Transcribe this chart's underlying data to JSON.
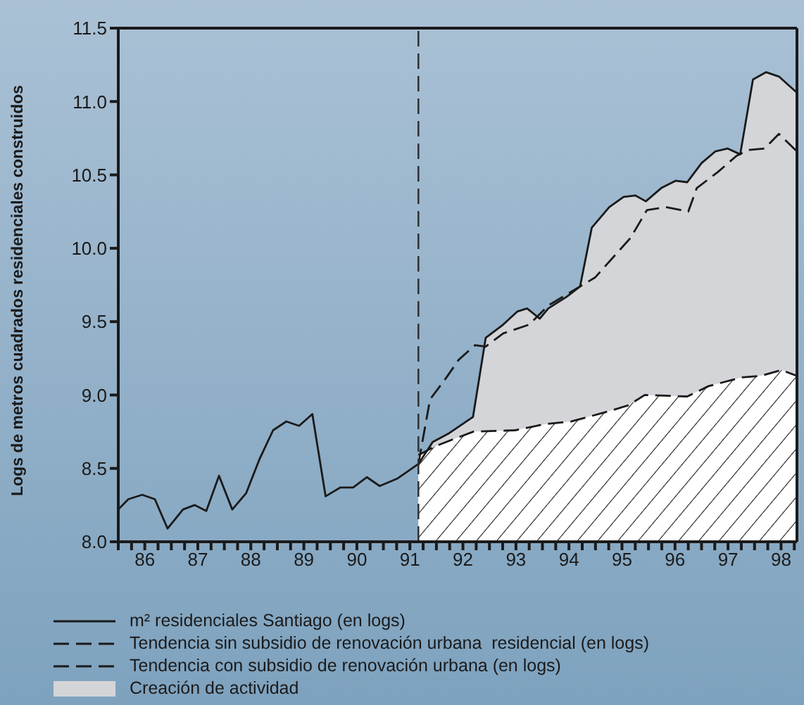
{
  "chart_data": {
    "type": "line",
    "ylabel": "Logs de metros cuadrados residenciales construidos",
    "xlim": [
      86,
      98.8
    ],
    "ylim": [
      8,
      11.5
    ],
    "yticks": [
      {
        "value": 8,
        "label": "8.0"
      },
      8.5,
      {
        "value": 9,
        "label": "9.0"
      },
      9.5,
      {
        "value": 10,
        "label": "10.0"
      },
      10.5,
      {
        "value": 11,
        "label": "11.0"
      },
      11.5
    ],
    "xticks": [
      {
        "value": 86,
        "label": null
      },
      {
        "value": 86.25,
        "label": null
      },
      {
        "value": 86.5,
        "label": "86"
      },
      {
        "value": 86.75,
        "label": null
      },
      {
        "value": 87,
        "label": null
      },
      {
        "value": 87.25,
        "label": null
      },
      {
        "value": 87.5,
        "label": "87"
      },
      {
        "value": 87.75,
        "label": null
      },
      {
        "value": 88,
        "label": null
      },
      {
        "value": 88.25,
        "label": null
      },
      {
        "value": 88.5,
        "label": "88"
      },
      {
        "value": 88.75,
        "label": null
      },
      {
        "value": 89,
        "label": null
      },
      {
        "value": 89.25,
        "label": null
      },
      {
        "value": 89.5,
        "label": "89"
      },
      {
        "value": 89.75,
        "label": null
      },
      {
        "value": 90,
        "label": null
      },
      {
        "value": 90.25,
        "label": null
      },
      {
        "value": 90.5,
        "label": "90"
      },
      {
        "value": 90.75,
        "label": null
      },
      {
        "value": 91,
        "label": null
      },
      {
        "value": 91.25,
        "label": null
      },
      {
        "value": 91.5,
        "label": "91"
      },
      {
        "value": 91.75,
        "label": null
      },
      {
        "value": 92,
        "label": null
      },
      {
        "value": 92.25,
        "label": null
      },
      {
        "value": 92.5,
        "label": "92"
      },
      {
        "value": 92.75,
        "label": null
      },
      {
        "value": 93,
        "label": null
      },
      {
        "value": 93.25,
        "label": null
      },
      {
        "value": 93.5,
        "label": "93"
      },
      {
        "value": 93.75,
        "label": null
      },
      {
        "value": 94,
        "label": null
      },
      {
        "value": 94.25,
        "label": null
      },
      {
        "value": 94.5,
        "label": "94"
      },
      {
        "value": 94.75,
        "label": null
      },
      {
        "value": 95,
        "label": null
      },
      {
        "value": 95.25,
        "label": null
      },
      {
        "value": 95.5,
        "label": "95"
      },
      {
        "value": 95.75,
        "label": null
      },
      {
        "value": 96,
        "label": null
      },
      {
        "value": 96.25,
        "label": null
      },
      {
        "value": 96.5,
        "label": "96"
      },
      {
        "value": 96.75,
        "label": null
      },
      {
        "value": 97,
        "label": null
      },
      {
        "value": 97.25,
        "label": null
      },
      {
        "value": 97.5,
        "label": "97"
      },
      {
        "value": 97.75,
        "label": null
      },
      {
        "value": 98,
        "label": null
      },
      {
        "value": 98.25,
        "label": null
      },
      {
        "value": 98.5,
        "label": "98"
      },
      {
        "value": 98.75,
        "label": null
      }
    ],
    "legend": "bottom",
    "ref_lines": [
      {
        "axis": "x",
        "value": 91.66,
        "color": "#333333",
        "line_style": "dashed"
      }
    ],
    "series": [
      {
        "name": "m² residenciales Santiago (en logs)",
        "color": "#1a1a1a",
        "line_style": "solid",
        "x": [
          86.0,
          86.19,
          86.45,
          86.69,
          86.93,
          87.22,
          87.44,
          87.66,
          87.9,
          88.15,
          88.41,
          88.66,
          88.92,
          89.17,
          89.41,
          89.66,
          89.91,
          90.19,
          90.43,
          90.69,
          90.93,
          91.26,
          91.66,
          91.93,
          92.24,
          92.69,
          92.93,
          93.26,
          93.53,
          93.71,
          93.95,
          94.11,
          94.46,
          94.71,
          94.93,
          95.26,
          95.53,
          95.75,
          95.95,
          96.24,
          96.51,
          96.73,
          97.0,
          97.26,
          97.49,
          97.73,
          97.97,
          98.22,
          98.46,
          98.8
        ],
        "values": [
          8.22,
          8.29,
          8.32,
          8.29,
          8.09,
          8.22,
          8.25,
          8.21,
          8.45,
          8.22,
          8.33,
          8.56,
          8.76,
          8.82,
          8.79,
          8.87,
          8.31,
          8.37,
          8.37,
          8.44,
          8.38,
          8.43,
          8.53,
          8.68,
          8.74,
          8.85,
          9.39,
          9.48,
          9.57,
          9.59,
          9.52,
          9.59,
          9.67,
          9.74,
          10.14,
          10.28,
          10.35,
          10.36,
          10.32,
          10.41,
          10.46,
          10.45,
          10.58,
          10.66,
          10.68,
          10.64,
          11.15,
          11.2,
          11.17,
          11.06
        ]
      },
      {
        "name": "Tendencia sin subsidio de renovación urbana  residencial (en logs)",
        "type": "area",
        "color": "#1a1a1a",
        "line_style": "dashed",
        "x": [
          91.66,
          91.97,
          92.69,
          93.49,
          94.02,
          94.55,
          95.26,
          95.62,
          95.93,
          96.73,
          97.13,
          97.75,
          98.11,
          98.51,
          98.8
        ],
        "values": [
          8.59,
          8.65,
          8.75,
          8.76,
          8.8,
          8.82,
          8.89,
          8.93,
          9.0,
          8.99,
          9.06,
          9.12,
          9.13,
          9.17,
          9.13
        ]
      },
      {
        "name": "Tendencia con subsidio de renovación urbana (en logs)",
        "color": "#1a1a1a",
        "line_style": "dashed",
        "x": [
          91.66,
          91.88,
          92.19,
          92.42,
          92.73,
          92.93,
          93.26,
          93.75,
          94.11,
          94.71,
          94.99,
          95.66,
          95.97,
          96.33,
          96.75,
          96.91,
          97.31,
          97.66,
          97.89,
          98.19,
          98.46,
          98.8
        ],
        "values": [
          8.53,
          8.97,
          9.12,
          9.24,
          9.34,
          9.33,
          9.42,
          9.48,
          9.61,
          9.74,
          9.8,
          10.07,
          10.26,
          10.28,
          10.25,
          10.41,
          10.52,
          10.63,
          10.67,
          10.68,
          10.78,
          10.66
        ]
      },
      {
        "name": "Creación de actividad",
        "type": "area",
        "color": "#d4d5d8",
        "x": [
          91.66,
          91.93,
          92.24,
          92.69,
          92.93,
          93.26,
          93.53,
          93.71,
          93.95,
          94.11,
          94.46,
          94.71,
          94.93,
          95.26,
          95.53,
          95.75,
          95.95,
          96.24,
          96.51,
          96.73,
          97.0,
          97.26,
          97.49,
          97.73,
          97.97,
          98.22,
          98.46,
          98.8
        ],
        "values": [
          8.53,
          8.68,
          8.74,
          8.85,
          9.39,
          9.48,
          9.57,
          9.59,
          9.52,
          9.59,
          9.67,
          9.74,
          10.14,
          10.28,
          10.35,
          10.36,
          10.32,
          10.41,
          10.46,
          10.45,
          10.58,
          10.66,
          10.68,
          10.64,
          11.15,
          11.2,
          11.17,
          11.06
        ]
      }
    ]
  }
}
